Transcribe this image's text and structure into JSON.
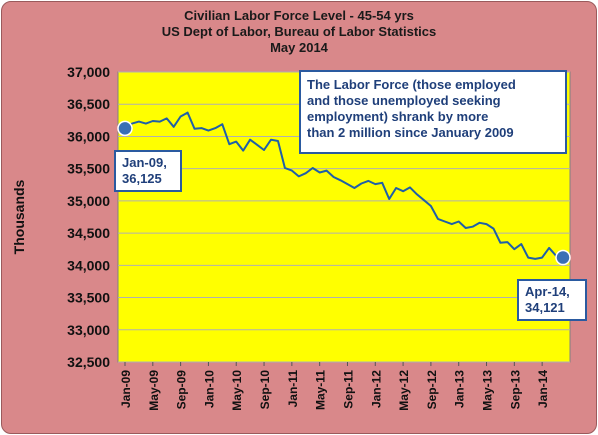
{
  "chart_data": {
    "type": "line",
    "title": [
      "Civilian Labor Force Level - 45-54 yrs",
      "US Dept of Labor, Bureau of Labor Statistics",
      "May 2014"
    ],
    "ylabel": "Thousands",
    "xlabel": "",
    "ylim": [
      32500,
      37000
    ],
    "yticks": [
      32500,
      33000,
      33500,
      34000,
      34500,
      35000,
      35500,
      36000,
      36500,
      37000
    ],
    "ytick_labels": [
      "32,500",
      "33,000",
      "33,500",
      "34,000",
      "34,500",
      "35,000",
      "35,500",
      "36,000",
      "36,500",
      "37,000"
    ],
    "xtick_labels": [
      "Jan-09",
      "May-09",
      "Sep-09",
      "Jan-10",
      "May-10",
      "Sep-10",
      "Jan-11",
      "May-11",
      "Sep-11",
      "Jan-12",
      "May-12",
      "Sep-12",
      "Jan-13",
      "May-13",
      "Sep-13",
      "Jan-14"
    ],
    "grid": true,
    "line_color": "#1f5fa8",
    "plot_bg": "#ffff00",
    "x": [
      "Jan-09",
      "Feb-09",
      "Mar-09",
      "Apr-09",
      "May-09",
      "Jun-09",
      "Jul-09",
      "Aug-09",
      "Sep-09",
      "Oct-09",
      "Nov-09",
      "Dec-09",
      "Jan-10",
      "Feb-10",
      "Mar-10",
      "Apr-10",
      "May-10",
      "Jun-10",
      "Jul-10",
      "Aug-10",
      "Sep-10",
      "Oct-10",
      "Nov-10",
      "Dec-10",
      "Jan-11",
      "Feb-11",
      "Mar-11",
      "Apr-11",
      "May-11",
      "Jun-11",
      "Jul-11",
      "Aug-11",
      "Sep-11",
      "Oct-11",
      "Nov-11",
      "Dec-11",
      "Jan-12",
      "Feb-12",
      "Mar-12",
      "Apr-12",
      "May-12",
      "Jun-12",
      "Jul-12",
      "Aug-12",
      "Sep-12",
      "Oct-12",
      "Nov-12",
      "Dec-12",
      "Jan-13",
      "Feb-13",
      "Mar-13",
      "Apr-13",
      "May-13",
      "Jun-13",
      "Jul-13",
      "Aug-13",
      "Sep-13",
      "Oct-13",
      "Nov-13",
      "Dec-13",
      "Jan-14",
      "Feb-14",
      "Mar-14",
      "Apr-14"
    ],
    "values": [
      36125,
      36200,
      36230,
      36200,
      36240,
      36230,
      36280,
      36150,
      36310,
      36370,
      36120,
      36130,
      36090,
      36130,
      36190,
      35880,
      35920,
      35780,
      35950,
      35870,
      35790,
      35950,
      35930,
      35510,
      35470,
      35380,
      35430,
      35510,
      35440,
      35470,
      35370,
      35320,
      35260,
      35200,
      35270,
      35310,
      35260,
      35280,
      35030,
      35200,
      35150,
      35210,
      35100,
      35010,
      34920,
      34720,
      34680,
      34640,
      34680,
      34580,
      34600,
      34660,
      34640,
      34570,
      34350,
      34360,
      34250,
      34330,
      34120,
      34100,
      34120,
      34270,
      34150,
      34121
    ],
    "annotations": [
      {
        "point": "Jan-09",
        "label_lines": [
          "Jan-09,",
          "36,125"
        ]
      },
      {
        "point": "Apr-14",
        "label_lines": [
          "Apr-14,",
          "34,121"
        ]
      }
    ],
    "callout_lines": [
      "The Labor  Force (those employed",
      "and those unemployed seeking",
      "employment) shrank by more",
      "than 2 million since January  2009"
    ]
  }
}
